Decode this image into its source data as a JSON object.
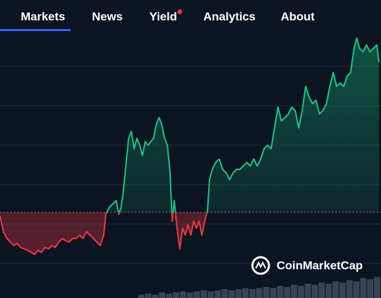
{
  "nav": {
    "items": [
      {
        "label": "Markets",
        "active": true
      },
      {
        "label": "News"
      },
      {
        "label": "Yield",
        "badge": true
      },
      {
        "label": "Analytics"
      },
      {
        "label": "About"
      }
    ]
  },
  "watermark": "CoinMarketCap",
  "chart_data": {
    "type": "line",
    "x": [
      0,
      5,
      10,
      15,
      20,
      25,
      30,
      35,
      40,
      45,
      50,
      55,
      60,
      65,
      70,
      75,
      80,
      85,
      90,
      95,
      100,
      105,
      110,
      115,
      120,
      125,
      130,
      135,
      140,
      145,
      150,
      153,
      158,
      163,
      168,
      172,
      175,
      178,
      182,
      186,
      190,
      194,
      198,
      202,
      206,
      210,
      214,
      218,
      222,
      226,
      230,
      234,
      238,
      242,
      246,
      249,
      252,
      256,
      260,
      264,
      268,
      272,
      276,
      280,
      284,
      288,
      292,
      296,
      300,
      303,
      307,
      312,
      317,
      322,
      327,
      332,
      337,
      342,
      347,
      352,
      357,
      362,
      367,
      372,
      377,
      382,
      387,
      392,
      397,
      402,
      407,
      412,
      417,
      422,
      427,
      432,
      437,
      442,
      447,
      452,
      457,
      462,
      467,
      472,
      477,
      482,
      487,
      492,
      497,
      502,
      507,
      512,
      516,
      520,
      525,
      530,
      535,
      540,
      545,
      548
    ],
    "series": [
      {
        "color": "#16c784",
        "negative_color": "#ea3943",
        "values": [
          119,
          96,
          86,
          81,
          76,
          79,
          73,
          71,
          69,
          66,
          63,
          69,
          66,
          73,
          71,
          76,
          73,
          81,
          86,
          83,
          81,
          86,
          86,
          91,
          86,
          96,
          91,
          86,
          81,
          76,
          91,
          121,
          131,
          136,
          141,
          121,
          131,
          151,
          191,
          231,
          241,
          216,
          231,
          221,
          206,
          226,
          221,
          226,
          231,
          251,
          261,
          251,
          231,
          221,
          181,
          111,
          141,
          101,
          71,
          101,
          91,
          106,
          91,
          111,
          101,
          111,
          91,
          111,
          126,
          171,
          186,
          196,
          201,
          186,
          181,
          171,
          181,
          186,
          186,
          191,
          196,
          191,
          201,
          191,
          201,
          216,
          221,
          216,
          246,
          276,
          256,
          261,
          266,
          276,
          271,
          246,
          271,
          306,
          291,
          281,
          286,
          266,
          271,
          281,
          306,
          326,
          306,
          311,
          306,
          321,
          326,
          361,
          376,
          361,
          356,
          366,
          356,
          361,
          366,
          341
        ]
      }
    ],
    "baseline": 124,
    "xlim": [
      0,
      551
    ],
    "ylim": [
      0,
      400
    ],
    "yticks": [
      50,
      107,
      164,
      221,
      278,
      335
    ],
    "grid": true,
    "volume": {
      "color": "#3a4256",
      "values": [
        3,
        4,
        3,
        5,
        4,
        5,
        6,
        5,
        6,
        7,
        6,
        7,
        8,
        7,
        8,
        9,
        8,
        9,
        10,
        9,
        11,
        10,
        12,
        11,
        13,
        12,
        14,
        13,
        15,
        14,
        16,
        15,
        18,
        17,
        19
      ]
    }
  }
}
